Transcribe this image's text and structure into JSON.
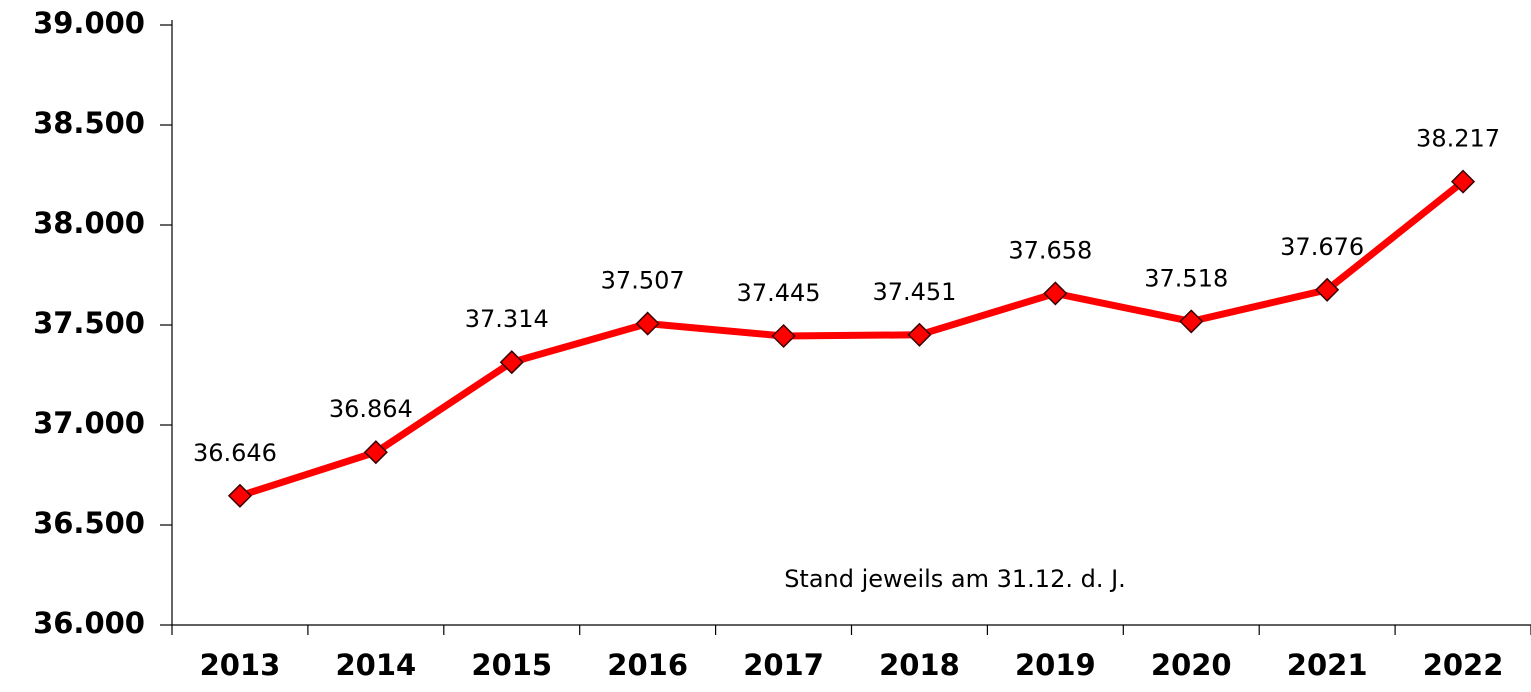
{
  "chart_data": {
    "type": "line",
    "categories": [
      "2013",
      "2014",
      "2015",
      "2016",
      "2017",
      "2018",
      "2019",
      "2020",
      "2021",
      "2022"
    ],
    "values": [
      36646,
      36864,
      37314,
      37507,
      37445,
      37451,
      37658,
      37518,
      37676,
      38217
    ],
    "value_labels": [
      "36.646",
      "36.864",
      "37.314",
      "37.507",
      "37.445",
      "37.451",
      "37.658",
      "37.518",
      "37.676",
      "38.217"
    ],
    "color": "#ff0000",
    "ylim": [
      36000,
      39000
    ],
    "yticks": [
      {
        "value": 36000,
        "label": "36.000"
      },
      {
        "value": 36500,
        "label": "36.500"
      },
      {
        "value": 37000,
        "label": "37.000"
      },
      {
        "value": 37500,
        "label": "37.500"
      },
      {
        "value": 38000,
        "label": "38.000"
      },
      {
        "value": 38500,
        "label": "38.500"
      },
      {
        "value": 39000,
        "label": "39.000"
      }
    ],
    "annotation": "Stand jeweils am 31.12. d. J."
  }
}
